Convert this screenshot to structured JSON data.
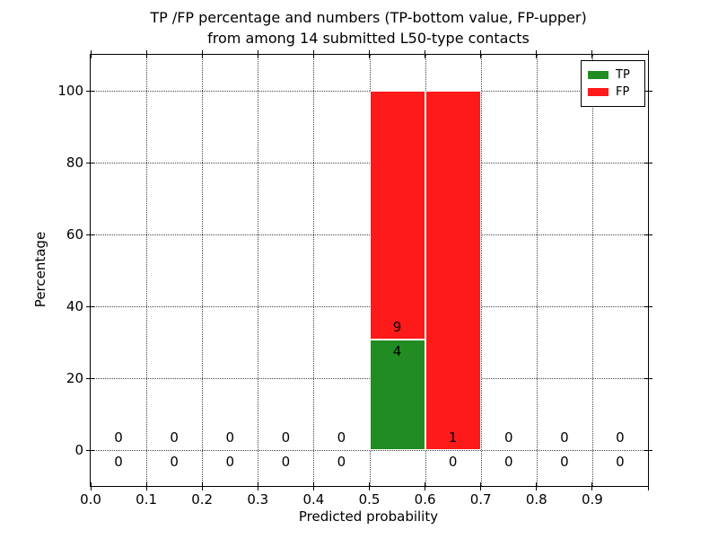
{
  "chart": {
    "title_lines": [
      "TP /FP percentage and numbers (TP-bottom value, FP-upper)",
      "from among 14 submitted L50-type contacts"
    ],
    "xlabel": "Predicted probability",
    "ylabel": "Percentage"
  },
  "chart_data": {
    "type": "bar",
    "stacked": true,
    "title": "TP /FP percentage and numbers (TP-bottom value, FP-upper)\nfrom among 14 submitted L50-type contacts",
    "xlabel": "Predicted probability",
    "ylabel": "Percentage",
    "xlim": [
      0.0,
      1.0
    ],
    "ylim": [
      -10,
      110
    ],
    "grid": true,
    "bin_width": 0.1,
    "xticks": {
      "values": [
        0.0,
        0.1,
        0.2,
        0.3,
        0.4,
        0.5,
        0.6,
        0.7,
        0.8,
        0.9,
        1.0
      ],
      "labels": [
        "0.0",
        "0.1",
        "0.2",
        "0.3",
        "0.4",
        "0.5",
        "0.6",
        "0.7",
        "0.8",
        "0.9",
        ""
      ]
    },
    "yticks": {
      "values": [
        0,
        20,
        40,
        60,
        80,
        100
      ],
      "labels": [
        "0",
        "20",
        "40",
        "60",
        "80",
        "100"
      ]
    },
    "bins": [
      {
        "x0": 0.0,
        "x1": 0.1,
        "tp_count": 0,
        "fp_count": 0,
        "tp_pct": 0,
        "fp_pct": 0
      },
      {
        "x0": 0.1,
        "x1": 0.2,
        "tp_count": 0,
        "fp_count": 0,
        "tp_pct": 0,
        "fp_pct": 0
      },
      {
        "x0": 0.2,
        "x1": 0.3,
        "tp_count": 0,
        "fp_count": 0,
        "tp_pct": 0,
        "fp_pct": 0
      },
      {
        "x0": 0.3,
        "x1": 0.4,
        "tp_count": 0,
        "fp_count": 0,
        "tp_pct": 0,
        "fp_pct": 0
      },
      {
        "x0": 0.4,
        "x1": 0.5,
        "tp_count": 0,
        "fp_count": 0,
        "tp_pct": 0,
        "fp_pct": 0
      },
      {
        "x0": 0.5,
        "x1": 0.6,
        "tp_count": 4,
        "fp_count": 9,
        "tp_pct": 30.8,
        "fp_pct": 69.2
      },
      {
        "x0": 0.6,
        "x1": 0.7,
        "tp_count": 0,
        "fp_count": 1,
        "tp_pct": 0,
        "fp_pct": 100
      },
      {
        "x0": 0.7,
        "x1": 0.8,
        "tp_count": 0,
        "fp_count": 0,
        "tp_pct": 0,
        "fp_pct": 0
      },
      {
        "x0": 0.8,
        "x1": 0.9,
        "tp_count": 0,
        "fp_count": 0,
        "tp_pct": 0,
        "fp_pct": 0
      },
      {
        "x0": 0.9,
        "x1": 1.0,
        "tp_count": 0,
        "fp_count": 0,
        "tp_pct": 0,
        "fp_pct": 0
      }
    ],
    "legend": {
      "position": "upper right",
      "entries": [
        {
          "label": "TP",
          "color": "#218c21"
        },
        {
          "label": "FP",
          "color": "#ff1a1a"
        }
      ]
    },
    "colors": {
      "tp": "#218c21",
      "fp": "#ff1a1a",
      "grid": "#444444",
      "frame": "#000000",
      "text": "#000000",
      "background": "#ffffff"
    }
  }
}
